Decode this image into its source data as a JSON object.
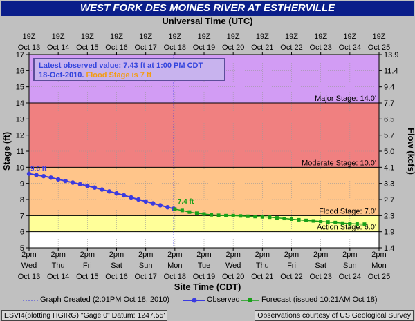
{
  "title": "WEST FORK DES MOINES RIVER AT ESTHERVILLE",
  "top_axis_label": "Universal Time (UTC)",
  "bottom_axis_label": "Site Time (CDT)",
  "info": {
    "line1": "Latest observed value: 7.43 ft at 1:00 PM CDT",
    "line2_date": "18-Oct-2010.",
    "line2_flood": "Flood Stage is 7 ft"
  },
  "legend": {
    "graph_created": "Graph Created (2:01PM Oct 18, 2010)",
    "observed": "Observed",
    "forecast": "Forecast (issued 10:21AM Oct 18)"
  },
  "footer": {
    "left": "ESVI4(plotting HGIRG) \"Gage 0\" Datum: 1247.55'",
    "right": "Observations courtesy of US Geological Survey"
  },
  "colors": {
    "record": "#d29cf4",
    "major": "#f08080",
    "moderate": "#ffc58a",
    "flood": "#ffff99",
    "action": "#ffffff",
    "observed": "#3a3ae0",
    "forecast": "#19a019"
  },
  "chart_data": {
    "type": "line",
    "ylabel": "Stage (ft)",
    "y2label": "Flow (kcfs)",
    "ylim": [
      5,
      17
    ],
    "yticks": [
      5,
      6,
      7,
      8,
      9,
      10,
      11,
      12,
      13,
      14,
      15,
      16,
      17
    ],
    "flow_ticks": [
      "1.4",
      "1.9",
      "2.3",
      "2.7",
      "3.3",
      "4.1",
      "5.0",
      "5.7",
      "6.5",
      "7.7",
      "9.4",
      "11.4",
      "13.9"
    ],
    "bottom_ticks": [
      {
        "l1": "2pm",
        "l2": "Wed",
        "l3": "Oct 13"
      },
      {
        "l1": "2pm",
        "l2": "Thu",
        "l3": "Oct 14"
      },
      {
        "l1": "2pm",
        "l2": "Fri",
        "l3": "Oct 15"
      },
      {
        "l1": "2pm",
        "l2": "Sat",
        "l3": "Oct 16"
      },
      {
        "l1": "2pm",
        "l2": "Sun",
        "l3": "Oct 17"
      },
      {
        "l1": "2pm",
        "l2": "Mon",
        "l3": "Oct 18"
      },
      {
        "l1": "2pm",
        "l2": "Tue",
        "l3": "Oct 19"
      },
      {
        "l1": "2pm",
        "l2": "Wed",
        "l3": "Oct 20"
      },
      {
        "l1": "2pm",
        "l2": "Thu",
        "l3": "Oct 21"
      },
      {
        "l1": "2pm",
        "l2": "Fri",
        "l3": "Oct 22"
      },
      {
        "l1": "2pm",
        "l2": "Sat",
        "l3": "Oct 23"
      },
      {
        "l1": "2pm",
        "l2": "Sun",
        "l3": "Oct 24"
      },
      {
        "l1": "2pm",
        "l2": "Mon",
        "l3": "Oct 25"
      }
    ],
    "top_ticks": [
      {
        "l1": "19Z",
        "l2": "Oct 13"
      },
      {
        "l1": "19Z",
        "l2": "Oct 14"
      },
      {
        "l1": "19Z",
        "l2": "Oct 15"
      },
      {
        "l1": "19Z",
        "l2": "Oct 16"
      },
      {
        "l1": "19Z",
        "l2": "Oct 17"
      },
      {
        "l1": "19Z",
        "l2": "Oct 18"
      },
      {
        "l1": "19Z",
        "l2": "Oct 19"
      },
      {
        "l1": "19Z",
        "l2": "Oct 20"
      },
      {
        "l1": "19Z",
        "l2": "Oct 21"
      },
      {
        "l1": "19Z",
        "l2": "Oct 22"
      },
      {
        "l1": "19Z",
        "l2": "Oct 23"
      },
      {
        "l1": "19Z",
        "l2": "Oct 24"
      },
      {
        "l1": "19Z",
        "l2": "Oct 25"
      }
    ],
    "x_days_span": 12,
    "stages": [
      {
        "name": "Major Stage: 14.0'",
        "value": 14,
        "band": [
          14,
          17
        ],
        "color": "#d29cf4"
      },
      {
        "name": "Moderate Stage: 10.0'",
        "value": 10,
        "band": [
          10,
          14
        ],
        "color": "#f08080"
      },
      {
        "name": "Flood Stage: 7.0'",
        "value": 7,
        "band": [
          7,
          10
        ],
        "color": "#ffc58a"
      },
      {
        "name": "Action Stage: 6.0'",
        "value": 6,
        "band": [
          6,
          7
        ],
        "color": "#ffff99"
      }
    ],
    "observed_label": "9.6 ft",
    "forecast_label": "7.4 ft",
    "created_day": 4.96,
    "series": [
      {
        "name": "Observed",
        "x": [
          0.0,
          0.25,
          0.5,
          0.75,
          1.0,
          1.25,
          1.5,
          1.75,
          2.0,
          2.25,
          2.5,
          2.75,
          3.0,
          3.25,
          3.5,
          3.75,
          4.0,
          4.25,
          4.5,
          4.75,
          4.96
        ],
        "values": [
          9.6,
          9.52,
          9.45,
          9.36,
          9.25,
          9.15,
          9.05,
          8.95,
          8.85,
          8.74,
          8.62,
          8.5,
          8.38,
          8.26,
          8.13,
          8.0,
          7.88,
          7.76,
          7.64,
          7.52,
          7.43
        ]
      },
      {
        "name": "Forecast",
        "x": [
          5.0,
          5.25,
          5.5,
          5.75,
          6.0,
          6.25,
          6.5,
          6.75,
          7.0,
          7.25,
          7.5,
          7.75,
          8.0,
          8.25,
          8.5,
          8.75,
          9.0,
          9.25,
          9.5,
          9.75,
          10.0,
          10.25,
          10.5,
          10.75,
          11.0,
          11.25,
          11.5
        ],
        "values": [
          7.4,
          7.32,
          7.22,
          7.15,
          7.1,
          7.05,
          7.02,
          7.0,
          7.0,
          6.98,
          6.96,
          6.94,
          6.92,
          6.9,
          6.86,
          6.82,
          6.78,
          6.74,
          6.7,
          6.67,
          6.64,
          6.6,
          6.57,
          6.53,
          6.5,
          6.48,
          6.47
        ]
      }
    ]
  }
}
